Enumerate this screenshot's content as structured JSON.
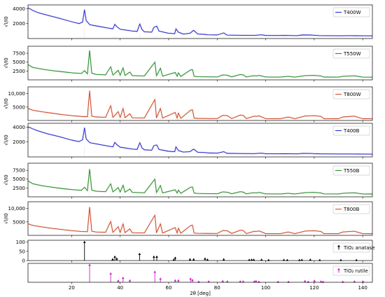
{
  "chart_data": {
    "type": "line",
    "shared_x": {
      "label": "2θ [deg]",
      "ticks": [
        20,
        40,
        60,
        80,
        100,
        120,
        140
      ],
      "xlim": [
        2,
        144
      ]
    },
    "panels": [
      {
        "id": "T400W",
        "ylabel": "√I/I0",
        "yticks": [
          2000,
          4000
        ],
        "ytick_labels": [
          "2000",
          "4000"
        ],
        "ylim": [
          0,
          4500
        ],
        "legend": "T400W",
        "legend_position": "top-right",
        "color": "#2222cc",
        "phase": "anatase",
        "x": [
          2,
          3,
          4,
          6,
          8,
          10,
          15,
          20,
          23,
          24.5,
          25.3,
          26,
          27.5,
          30,
          35,
          37,
          37.8,
          38.6,
          40,
          45,
          47,
          48.1,
          49,
          50,
          53,
          53.9,
          55.1,
          56,
          60,
          62.5,
          63,
          64,
          66,
          68.8,
          70.3,
          72,
          75.1,
          76,
          80,
          82.7,
          84,
          90,
          95,
          98.3,
          100,
          105,
          108,
          113,
          115,
          118.4,
          120,
          122,
          125,
          130,
          135,
          140,
          144
        ],
        "y": [
          4100,
          3950,
          3750,
          3480,
          3300,
          3120,
          2700,
          2250,
          2000,
          2200,
          3850,
          2400,
          1850,
          1700,
          1400,
          1300,
          1900,
          1600,
          1250,
          1000,
          950,
          1950,
          1200,
          900,
          850,
          1500,
          1650,
          1000,
          700,
          650,
          1300,
          850,
          600,
          700,
          1100,
          600,
          550,
          500,
          480,
          750,
          460,
          430,
          420,
          500,
          410,
          400,
          420,
          380,
          480,
          470,
          440,
          390,
          380,
          370,
          380,
          370,
          360
        ]
      },
      {
        "id": "T550W",
        "ylabel": "√I/I0",
        "yticks": [
          2500,
          5000,
          7500
        ],
        "ytick_labels": [
          "2500",
          "5000",
          "7500"
        ],
        "ylim": [
          0,
          9500
        ],
        "legend": "T550W",
        "legend_position": "top-right",
        "color": "#228822",
        "phase": "rutile",
        "x": [
          2,
          4,
          8,
          12,
          16,
          20,
          24,
          25.3,
          26.5,
          27.4,
          28.3,
          30,
          34,
          36.1,
          37,
          39.2,
          40,
          41.2,
          42,
          44,
          45,
          50,
          54.3,
          55,
          56.6,
          57.5,
          62.7,
          63.5,
          64,
          65,
          69,
          69.8,
          70.5,
          72,
          76,
          80,
          82.3,
          84.2,
          86,
          89.5,
          90.7,
          92,
          95.3,
          96,
          97.3,
          100,
          106,
          109.3,
          112,
          116.4,
          120.1,
          122.8,
          124,
          130,
          131.8,
          136.5,
          140,
          144
        ],
        "y": [
          4300,
          3500,
          3000,
          2600,
          2300,
          2000,
          1800,
          2600,
          1700,
          8300,
          1900,
          1550,
          1400,
          3700,
          1350,
          2700,
          1300,
          3400,
          1250,
          2200,
          1200,
          1100,
          5000,
          1150,
          3300,
          1050,
          2100,
          1000,
          2000,
          950,
          2800,
          2900,
          1000,
          900,
          850,
          820,
          1400,
          1300,
          850,
          1500,
          1400,
          820,
          1200,
          1100,
          1250,
          800,
          780,
          1000,
          780,
          1200,
          1250,
          1100,
          790,
          770,
          1000,
          1150,
          770,
          760
        ]
      },
      {
        "id": "T800W",
        "ylabel": "√I/I0",
        "yticks": [
          5000,
          10000
        ],
        "ytick_labels": [
          "5000",
          "10,000"
        ],
        "ylim": [
          0,
          12500
        ],
        "legend": "T800W",
        "legend_position": "top-right",
        "color": "#cc4422",
        "phase": "rutile",
        "x": [
          2,
          4,
          8,
          12,
          16,
          20,
          24,
          26.5,
          27.4,
          28.3,
          30,
          34,
          36.1,
          37,
          39.2,
          40,
          41.2,
          42,
          44,
          45,
          50,
          54.3,
          55,
          56.6,
          57.5,
          62.7,
          63.5,
          64,
          65,
          69,
          69.8,
          70.5,
          72,
          76,
          80,
          82.3,
          84.2,
          86,
          89.5,
          90.7,
          92,
          95.3,
          96,
          97.3,
          100,
          106,
          109.3,
          112,
          116.4,
          120.1,
          122.8,
          124,
          130,
          131.8,
          136.5,
          140,
          144
        ],
        "y": [
          4500,
          3800,
          3200,
          2700,
          2200,
          1800,
          1500,
          1400,
          11000,
          1600,
          1300,
          1200,
          5500,
          1150,
          3300,
          1100,
          4500,
          1050,
          2500,
          1000,
          950,
          7800,
          1000,
          4500,
          900,
          3000,
          850,
          2800,
          800,
          3800,
          4000,
          850,
          780,
          740,
          700,
          1900,
          1800,
          720,
          2000,
          1900,
          700,
          1600,
          1500,
          1700,
          680,
          660,
          1300,
          660,
          1700,
          1800,
          1500,
          670,
          650,
          1300,
          1600,
          650,
          640
        ]
      },
      {
        "id": "T400B",
        "ylabel": "√I/I0",
        "yticks": [
          2000,
          4000
        ],
        "ytick_labels": [
          "2000",
          "4000"
        ],
        "ylim": [
          0,
          4500
        ],
        "legend": "T400B",
        "legend_position": "top-right",
        "color": "#2222cc",
        "phase": "anatase",
        "x": [
          2,
          3,
          4,
          6,
          8,
          10,
          15,
          20,
          23,
          24.5,
          25.3,
          26,
          27.5,
          30,
          35,
          37,
          37.8,
          38.6,
          40,
          45,
          47,
          48.1,
          49,
          50,
          53,
          53.9,
          55.1,
          56,
          60,
          62.5,
          63,
          64,
          66,
          68.8,
          70.3,
          72,
          75.1,
          76,
          80,
          82.7,
          84,
          90,
          95,
          98.3,
          100,
          105,
          108,
          113,
          115,
          118.4,
          120,
          122,
          125,
          130,
          135,
          140,
          144
        ],
        "y": [
          4000,
          3900,
          3750,
          3500,
          3300,
          3100,
          2700,
          2250,
          2050,
          2300,
          3900,
          2400,
          1900,
          1750,
          1450,
          1350,
          1950,
          1650,
          1300,
          1050,
          1000,
          1900,
          1200,
          950,
          900,
          1500,
          1600,
          1000,
          750,
          700,
          1350,
          850,
          650,
          700,
          1050,
          620,
          580,
          540,
          500,
          700,
          480,
          450,
          440,
          500,
          430,
          420,
          430,
          400,
          470,
          460,
          440,
          410,
          400,
          390,
          390,
          380,
          370
        ]
      },
      {
        "id": "T550B",
        "ylabel": "√I/I0",
        "yticks": [
          2500,
          5000,
          7500
        ],
        "ytick_labels": [
          "2500",
          "5000",
          "7500"
        ],
        "ylim": [
          0,
          9500
        ],
        "legend": "T550B",
        "legend_position": "top-right",
        "color": "#228822",
        "phase": "rutile",
        "x": [
          2,
          4,
          8,
          12,
          16,
          20,
          24,
          25.3,
          26.5,
          27.4,
          28.3,
          30,
          34,
          36.1,
          37,
          39.2,
          40,
          41.2,
          42,
          44,
          45,
          50,
          54.3,
          55,
          56.6,
          57.5,
          62.7,
          63.5,
          64,
          65,
          69,
          69.8,
          70.5,
          72,
          76,
          80,
          82.3,
          84.2,
          86,
          89.5,
          90.7,
          92,
          95.3,
          96,
          97.3,
          100,
          106,
          109.3,
          112,
          116.4,
          120.1,
          122.8,
          124,
          130,
          131.8,
          136.5,
          140,
          144
        ],
        "y": [
          4500,
          3700,
          3100,
          2700,
          2350,
          2050,
          1850,
          2700,
          1750,
          7800,
          1900,
          1600,
          1450,
          3700,
          1400,
          2600,
          1350,
          3300,
          1300,
          2200,
          1250,
          1150,
          5000,
          1200,
          3200,
          1100,
          2000,
          1050,
          1900,
          1000,
          2700,
          2800,
          1050,
          950,
          900,
          860,
          1400,
          1300,
          880,
          1450,
          1350,
          850,
          1200,
          1100,
          1250,
          830,
          810,
          1000,
          810,
          1200,
          1250,
          1100,
          820,
          800,
          1000,
          1150,
          800,
          790
        ]
      },
      {
        "id": "T800B",
        "ylabel": "√I/I0",
        "yticks": [
          5000,
          10000
        ],
        "ytick_labels": [
          "5000",
          "10,000"
        ],
        "ylim": [
          0,
          12500
        ],
        "legend": "T800B",
        "legend_position": "top-right",
        "color": "#cc4422",
        "phase": "rutile",
        "x": [
          2,
          4,
          8,
          12,
          16,
          20,
          24,
          26.5,
          27.4,
          28.3,
          30,
          34,
          36.1,
          37,
          39.2,
          40,
          41.2,
          42,
          44,
          45,
          50,
          54.3,
          55,
          56.6,
          57.5,
          62.7,
          63.5,
          64,
          65,
          69,
          69.8,
          70.5,
          72,
          76,
          80,
          82.3,
          84.2,
          86,
          89.5,
          90.7,
          92,
          95.3,
          96,
          97.3,
          100,
          106,
          109.3,
          112,
          116.4,
          120.1,
          122.8,
          124,
          130,
          131.8,
          136.5,
          140,
          144
        ],
        "y": [
          4300,
          3700,
          3100,
          2600,
          2150,
          1750,
          1450,
          1350,
          10500,
          1550,
          1250,
          1150,
          5200,
          1100,
          3200,
          1050,
          4300,
          1000,
          2400,
          950,
          900,
          7500,
          950,
          4300,
          870,
          2900,
          820,
          2700,
          780,
          3600,
          3800,
          820,
          760,
          720,
          690,
          1800,
          1700,
          700,
          1900,
          1800,
          680,
          1500,
          1450,
          1650,
          660,
          640,
          1250,
          640,
          1600,
          1700,
          1450,
          650,
          630,
          1250,
          1550,
          630,
          620
        ]
      }
    ],
    "references": [
      {
        "id": "anatase",
        "legend": "TiO₂ anatase",
        "legend_position": "top-right",
        "color": "#000000",
        "marker": "up-triangle",
        "yticks": [
          0,
          50,
          100
        ],
        "ytick_labels": [
          "0",
          "50",
          "100"
        ],
        "ylim": [
          0,
          110
        ],
        "sticks": [
          {
            "x": 25.3,
            "y": 100
          },
          {
            "x": 36.9,
            "y": 6
          },
          {
            "x": 37.8,
            "y": 20
          },
          {
            "x": 38.6,
            "y": 10
          },
          {
            "x": 48.0,
            "y": 35
          },
          {
            "x": 53.9,
            "y": 20
          },
          {
            "x": 55.1,
            "y": 20
          },
          {
            "x": 62.1,
            "y": 4
          },
          {
            "x": 62.7,
            "y": 14
          },
          {
            "x": 68.8,
            "y": 6
          },
          {
            "x": 70.3,
            "y": 6
          },
          {
            "x": 75.0,
            "y": 10
          },
          {
            "x": 76.0,
            "y": 4
          },
          {
            "x": 82.7,
            "y": 6
          },
          {
            "x": 93.2,
            "y": 3
          },
          {
            "x": 94.2,
            "y": 4
          },
          {
            "x": 95.1,
            "y": 4
          },
          {
            "x": 98.3,
            "y": 4
          },
          {
            "x": 101.2,
            "y": 2
          },
          {
            "x": 107.5,
            "y": 3
          },
          {
            "x": 108.9,
            "y": 2
          },
          {
            "x": 113.9,
            "y": 2
          },
          {
            "x": 114.9,
            "y": 3
          },
          {
            "x": 118.4,
            "y": 4
          },
          {
            "x": 122.3,
            "y": 2
          },
          {
            "x": 131.0,
            "y": 2
          },
          {
            "x": 137.4,
            "y": 2
          }
        ]
      },
      {
        "id": "rutile",
        "legend": "TiO₂ rutile",
        "legend_position": "top-right",
        "color": "#cc22cc",
        "marker": "up-triangle",
        "yticks": [
          0,
          50,
          100
        ],
        "ytick_labels": [
          "0",
          "50",
          "100"
        ],
        "ylim": [
          0,
          110
        ],
        "sticks": [
          {
            "x": 27.4,
            "y": 100
          },
          {
            "x": 36.1,
            "y": 50
          },
          {
            "x": 39.2,
            "y": 8
          },
          {
            "x": 41.2,
            "y": 25
          },
          {
            "x": 44.0,
            "y": 10
          },
          {
            "x": 54.3,
            "y": 60
          },
          {
            "x": 56.6,
            "y": 20
          },
          {
            "x": 62.7,
            "y": 10
          },
          {
            "x": 64.0,
            "y": 10
          },
          {
            "x": 69.0,
            "y": 20
          },
          {
            "x": 69.8,
            "y": 12
          },
          {
            "x": 72.4,
            "y": 2
          },
          {
            "x": 76.5,
            "y": 4
          },
          {
            "x": 82.3,
            "y": 6
          },
          {
            "x": 84.2,
            "y": 4
          },
          {
            "x": 89.5,
            "y": 4
          },
          {
            "x": 90.7,
            "y": 4
          },
          {
            "x": 95.3,
            "y": 4
          },
          {
            "x": 96.0,
            "y": 6
          },
          {
            "x": 97.2,
            "y": 2
          },
          {
            "x": 105.1,
            "y": 2
          },
          {
            "x": 109.4,
            "y": 2
          },
          {
            "x": 116.2,
            "y": 6
          },
          {
            "x": 117.5,
            "y": 2
          },
          {
            "x": 120.1,
            "y": 8
          },
          {
            "x": 122.8,
            "y": 4
          },
          {
            "x": 123.6,
            "y": 2
          },
          {
            "x": 131.8,
            "y": 2
          },
          {
            "x": 136.6,
            "y": 4
          },
          {
            "x": 140.1,
            "y": 4
          }
        ]
      }
    ]
  }
}
